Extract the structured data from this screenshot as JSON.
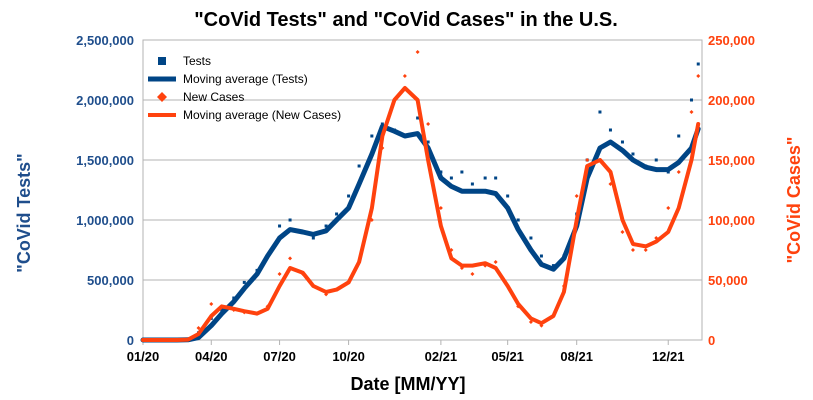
{
  "chart_data": {
    "type": "line",
    "title": "\"CoVid Tests\" and \"CoVid Cases\" in the U.S.",
    "xlabel": "Date [MM/YY]",
    "ylabel_left": "\"CoVid Tests\"",
    "ylabel_right": "\"CoVid Cases\"",
    "x_ticks": [
      "01/20",
      "04/20",
      "07/20",
      "10/20",
      "02/21",
      "05/21",
      "08/21",
      "12/21"
    ],
    "y_left_ticks": [
      "0",
      "500,000",
      "1,000,000",
      "1,500,000",
      "2,000,000",
      "2,500,000"
    ],
    "y_right_ticks": [
      "0",
      "50,000",
      "100,000",
      "150,000",
      "200,000",
      "250,000"
    ],
    "ylim_left": [
      0,
      2500000
    ],
    "ylim_right": [
      0,
      250000
    ],
    "grid": "horizontal",
    "legend_position": "top-left",
    "colors": {
      "tests": "#004586",
      "cases": "#ff420e",
      "left_axis": "#1f4e8c",
      "right_axis": "#ff420e"
    },
    "series": [
      {
        "name": "Tests",
        "axis": "left",
        "style": "markers-square",
        "x": [
          "2020-01-01",
          "2020-01-15",
          "2020-02-01",
          "2020-02-15",
          "2020-03-01",
          "2020-03-15",
          "2020-04-01",
          "2020-04-15",
          "2020-05-01",
          "2020-05-15",
          "2020-06-01",
          "2020-06-15",
          "2020-07-01",
          "2020-07-15",
          "2020-08-01",
          "2020-08-15",
          "2020-09-01",
          "2020-09-15",
          "2020-10-01",
          "2020-10-15",
          "2020-11-01",
          "2020-11-15",
          "2020-12-01",
          "2020-12-15",
          "2021-01-01",
          "2021-01-15",
          "2021-02-01",
          "2021-02-15",
          "2021-03-01",
          "2021-03-15",
          "2021-04-01",
          "2021-04-15",
          "2021-05-01",
          "2021-05-15",
          "2021-06-01",
          "2021-06-15",
          "2021-07-01",
          "2021-07-15",
          "2021-08-01",
          "2021-08-15",
          "2021-09-01",
          "2021-09-15",
          "2021-10-01",
          "2021-10-15",
          "2021-11-01",
          "2021-11-15",
          "2021-12-01",
          "2021-12-15",
          "2022-01-01",
          "2022-01-10"
        ],
        "values": [
          0,
          0,
          0,
          0,
          5000,
          60000,
          180000,
          250000,
          350000,
          480000,
          580000,
          700000,
          950000,
          1000000,
          900000,
          850000,
          950000,
          1050000,
          1200000,
          1450000,
          1700000,
          1800000,
          1750000,
          1700000,
          1850000,
          1650000,
          1400000,
          1350000,
          1400000,
          1300000,
          1350000,
          1350000,
          1200000,
          1000000,
          850000,
          700000,
          620000,
          700000,
          1050000,
          1500000,
          1900000,
          1750000,
          1650000,
          1550000,
          1450000,
          1500000,
          1400000,
          1700000,
          2000000,
          2300000
        ]
      },
      {
        "name": "Moving average (Tests)",
        "axis": "left",
        "style": "line",
        "x": [
          "2020-01-01",
          "2020-01-15",
          "2020-02-01",
          "2020-02-15",
          "2020-03-01",
          "2020-03-15",
          "2020-04-01",
          "2020-04-15",
          "2020-05-01",
          "2020-05-15",
          "2020-06-01",
          "2020-06-15",
          "2020-07-01",
          "2020-07-15",
          "2020-08-01",
          "2020-08-15",
          "2020-09-01",
          "2020-09-15",
          "2020-10-01",
          "2020-10-15",
          "2020-11-01",
          "2020-11-15",
          "2020-12-01",
          "2020-12-15",
          "2021-01-01",
          "2021-01-15",
          "2021-02-01",
          "2021-02-15",
          "2021-03-01",
          "2021-03-15",
          "2021-04-01",
          "2021-04-15",
          "2021-05-01",
          "2021-05-15",
          "2021-06-01",
          "2021-06-15",
          "2021-07-01",
          "2021-07-15",
          "2021-08-01",
          "2021-08-15",
          "2021-09-01",
          "2021-09-15",
          "2021-10-01",
          "2021-10-15",
          "2021-11-01",
          "2021-11-15",
          "2021-12-01",
          "2021-12-15",
          "2022-01-01",
          "2022-01-10"
        ],
        "values": [
          0,
          0,
          0,
          0,
          2000,
          20000,
          120000,
          220000,
          320000,
          430000,
          550000,
          700000,
          850000,
          920000,
          900000,
          880000,
          910000,
          1000000,
          1100000,
          1300000,
          1550000,
          1780000,
          1740000,
          1700000,
          1720000,
          1600000,
          1350000,
          1280000,
          1240000,
          1240000,
          1240000,
          1220000,
          1100000,
          920000,
          750000,
          630000,
          590000,
          680000,
          950000,
          1350000,
          1600000,
          1650000,
          1580000,
          1500000,
          1440000,
          1420000,
          1420000,
          1480000,
          1600000,
          1760000
        ]
      },
      {
        "name": "New Cases",
        "axis": "right",
        "style": "markers-diamond",
        "x": [
          "2020-01-01",
          "2020-01-15",
          "2020-02-01",
          "2020-02-15",
          "2020-03-01",
          "2020-03-15",
          "2020-04-01",
          "2020-04-15",
          "2020-05-01",
          "2020-05-15",
          "2020-06-01",
          "2020-06-15",
          "2020-07-01",
          "2020-07-15",
          "2020-08-01",
          "2020-08-15",
          "2020-09-01",
          "2020-09-15",
          "2020-10-01",
          "2020-10-15",
          "2020-11-01",
          "2020-11-15",
          "2020-12-01",
          "2020-12-15",
          "2021-01-01",
          "2021-01-15",
          "2021-02-01",
          "2021-02-15",
          "2021-03-01",
          "2021-03-15",
          "2021-04-01",
          "2021-04-15",
          "2021-05-01",
          "2021-05-15",
          "2021-06-01",
          "2021-06-15",
          "2021-07-01",
          "2021-07-15",
          "2021-08-01",
          "2021-08-15",
          "2021-09-01",
          "2021-09-15",
          "2021-10-01",
          "2021-10-15",
          "2021-11-01",
          "2021-11-15",
          "2021-12-01",
          "2021-12-15",
          "2022-01-01",
          "2022-01-10"
        ],
        "values": [
          0,
          0,
          0,
          0,
          500,
          10000,
          30000,
          28000,
          25000,
          23000,
          22000,
          28000,
          55000,
          68000,
          55000,
          45000,
          38000,
          42000,
          48000,
          65000,
          100000,
          160000,
          200000,
          220000,
          240000,
          180000,
          110000,
          75000,
          60000,
          55000,
          62000,
          65000,
          45000,
          28000,
          15000,
          12000,
          20000,
          45000,
          120000,
          150000,
          160000,
          130000,
          90000,
          75000,
          75000,
          85000,
          110000,
          140000,
          190000,
          220000
        ]
      },
      {
        "name": "Moving average (New Cases)",
        "axis": "right",
        "style": "line",
        "x": [
          "2020-01-01",
          "2020-01-15",
          "2020-02-01",
          "2020-02-15",
          "2020-03-01",
          "2020-03-15",
          "2020-04-01",
          "2020-04-15",
          "2020-05-01",
          "2020-05-15",
          "2020-06-01",
          "2020-06-15",
          "2020-07-01",
          "2020-07-15",
          "2020-08-01",
          "2020-08-15",
          "2020-09-01",
          "2020-09-15",
          "2020-10-01",
          "2020-10-15",
          "2020-11-01",
          "2020-11-15",
          "2020-12-01",
          "2020-12-15",
          "2021-01-01",
          "2021-01-15",
          "2021-02-01",
          "2021-02-15",
          "2021-03-01",
          "2021-03-15",
          "2021-04-01",
          "2021-04-15",
          "2021-05-01",
          "2021-05-15",
          "2021-06-01",
          "2021-06-15",
          "2021-07-01",
          "2021-07-15",
          "2021-08-01",
          "2021-08-15",
          "2021-09-01",
          "2021-09-15",
          "2021-10-01",
          "2021-10-15",
          "2021-11-01",
          "2021-11-15",
          "2021-12-01",
          "2021-12-15",
          "2022-01-01",
          "2022-01-10"
        ],
        "values": [
          0,
          0,
          0,
          0,
          300,
          5000,
          20000,
          28000,
          26000,
          24000,
          22000,
          26000,
          45000,
          60000,
          56000,
          45000,
          40000,
          42000,
          48000,
          65000,
          110000,
          170000,
          200000,
          210000,
          200000,
          150000,
          95000,
          68000,
          62000,
          62000,
          64000,
          60000,
          45000,
          30000,
          18000,
          14000,
          20000,
          40000,
          100000,
          145000,
          150000,
          140000,
          100000,
          80000,
          78000,
          82000,
          90000,
          110000,
          150000,
          180000
        ]
      }
    ]
  }
}
